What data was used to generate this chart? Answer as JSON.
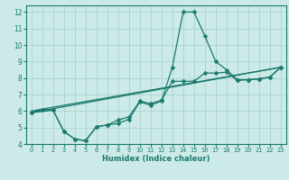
{
  "xlabel": "Humidex (Indice chaleur)",
  "background_color": "#cceae7",
  "grid_color": "#aad4d0",
  "line_color": "#1a7a6e",
  "xlim": [
    -0.5,
    23.5
  ],
  "ylim": [
    4,
    12.4
  ],
  "xticks": [
    0,
    1,
    2,
    3,
    4,
    5,
    6,
    7,
    8,
    9,
    10,
    11,
    12,
    13,
    14,
    15,
    16,
    17,
    18,
    19,
    20,
    21,
    22,
    23
  ],
  "yticks": [
    4,
    5,
    6,
    7,
    8,
    9,
    10,
    11,
    12
  ],
  "curve_x": [
    0,
    1,
    2,
    3,
    4,
    5,
    6,
    7,
    8,
    9,
    10,
    11,
    12,
    13,
    14,
    15,
    16,
    17,
    18,
    19,
    20,
    21,
    22,
    23
  ],
  "curve_y": [
    5.9,
    6.1,
    6.05,
    4.75,
    4.3,
    4.2,
    5.05,
    5.15,
    5.25,
    5.5,
    6.55,
    6.35,
    6.6,
    8.65,
    12.0,
    12.0,
    10.55,
    9.0,
    8.5,
    7.9,
    7.9,
    7.95,
    8.05,
    8.65
  ],
  "trend1_x": [
    0,
    2,
    3,
    4,
    5,
    6,
    7,
    8,
    9,
    10,
    11,
    12,
    13,
    14,
    15,
    16,
    17,
    18,
    19,
    20,
    21,
    22,
    23
  ],
  "trend1_y": [
    5.9,
    6.05,
    4.75,
    4.3,
    4.2,
    5.05,
    5.15,
    5.45,
    5.65,
    6.6,
    6.45,
    6.65,
    7.8,
    7.8,
    7.8,
    8.3,
    8.3,
    8.35,
    7.85,
    7.9,
    7.95,
    8.05,
    8.65
  ],
  "trend2_x": [
    0,
    23
  ],
  "trend2_y": [
    5.9,
    8.65
  ],
  "trend3_x": [
    0,
    23
  ],
  "trend3_y": [
    6.0,
    8.65
  ]
}
